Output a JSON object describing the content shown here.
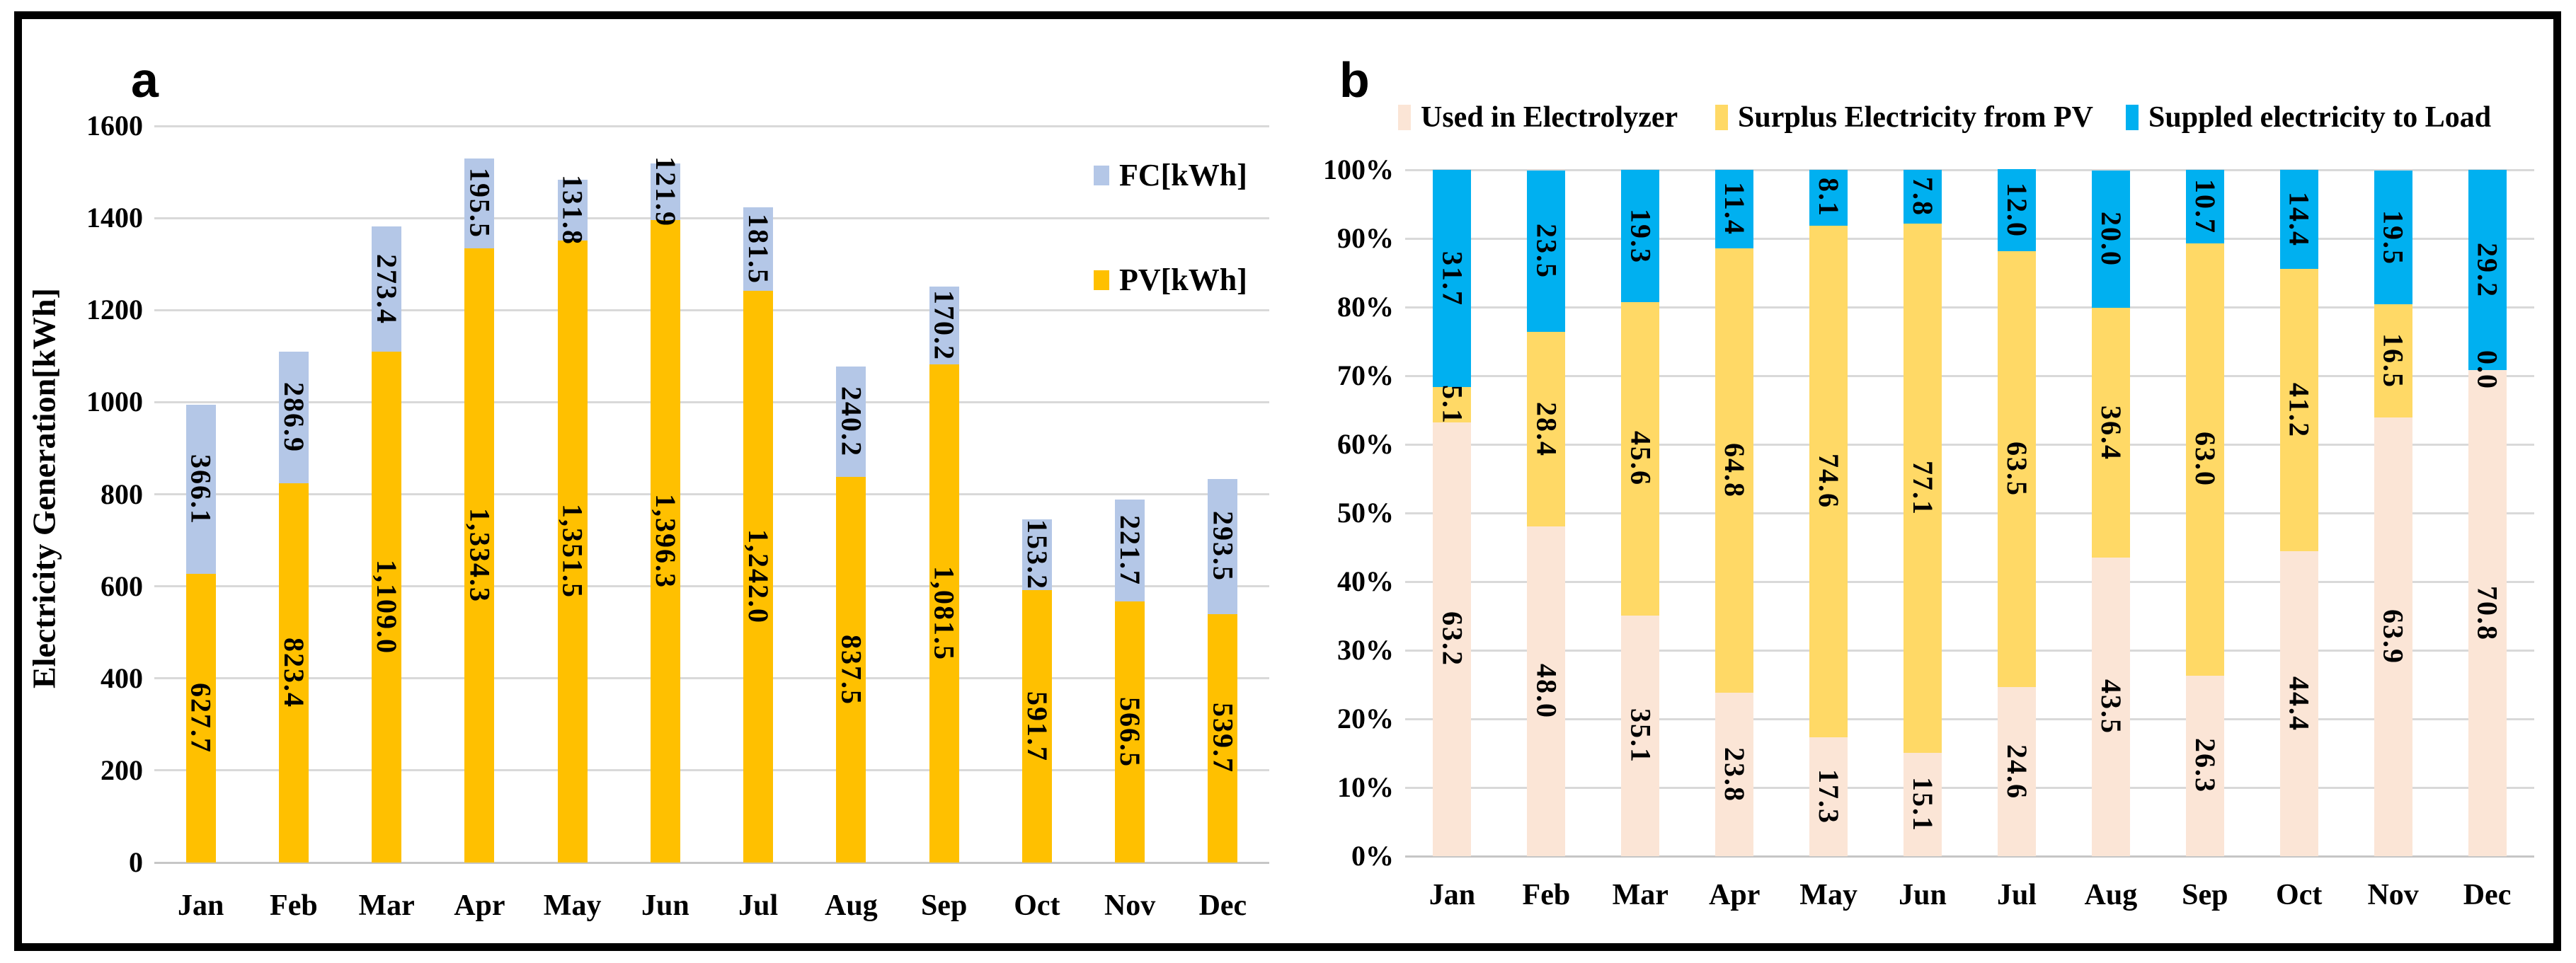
{
  "figure": {
    "panel_a_label": "a",
    "panel_b_label": "b"
  },
  "chart_data": [
    {
      "id": "a",
      "type": "bar",
      "stacked": true,
      "title": "",
      "xlabel": "",
      "ylabel": "Electricity Generation[kWh]",
      "ylim": [
        0,
        1600
      ],
      "ytick_labels": [
        "0",
        "200",
        "400",
        "600",
        "800",
        "1000",
        "1200",
        "1400",
        "1600"
      ],
      "grid": true,
      "legend_position": "right",
      "categories": [
        "Jan",
        "Feb",
        "Mar",
        "Apr",
        "May",
        "Jun",
        "Jul",
        "Aug",
        "Sep",
        "Oct",
        "Nov",
        "Dec"
      ],
      "series": [
        {
          "name": "PV[kWh]",
          "color": "#FFC000",
          "values": [
            627.7,
            823.4,
            1109.0,
            1334.3,
            1351.5,
            1396.3,
            1242.0,
            837.5,
            1081.5,
            591.7,
            566.5,
            539.7
          ],
          "value_labels": [
            "627.7",
            "823.4",
            "1,109.0",
            "1,334.3",
            "1,351.5",
            "1,396.3",
            "1,242.0",
            "837.5",
            "1,081.5",
            "591.7",
            "566.5",
            "539.7"
          ]
        },
        {
          "name": "FC[kWh]",
          "color": "#B4C7E7",
          "values": [
            366.1,
            286.9,
            273.4,
            195.5,
            131.8,
            121.9,
            181.5,
            240.2,
            170.2,
            153.2,
            221.7,
            293.5
          ],
          "value_labels": [
            "366.1",
            "286.9",
            "273.4",
            "195.5",
            "131.8",
            "121.9",
            "181.5",
            "240.2",
            "170.2",
            "153.2",
            "221.7",
            "293.5"
          ]
        }
      ],
      "legend_entries": [
        {
          "label": "FC[kWh]",
          "color": "#B4C7E7"
        },
        {
          "label": "PV[kWh]",
          "color": "#FFC000"
        }
      ]
    },
    {
      "id": "b",
      "type": "bar",
      "stacked": true,
      "percent": true,
      "title": "",
      "xlabel": "",
      "ylabel": "",
      "ylim": [
        0,
        100
      ],
      "ytick_labels": [
        "0%",
        "10%",
        "20%",
        "30%",
        "40%",
        "50%",
        "60%",
        "70%",
        "80%",
        "90%",
        "100%"
      ],
      "grid": true,
      "legend_position": "top",
      "categories": [
        "Jan",
        "Feb",
        "Mar",
        "Apr",
        "May",
        "Jun",
        "Jul",
        "Aug",
        "Sep",
        "Oct",
        "Nov",
        "Dec"
      ],
      "series": [
        {
          "name": "Used in Electrolyzer",
          "color": "#FBE5D6",
          "values": [
            63.2,
            48.0,
            35.1,
            23.8,
            17.3,
            15.1,
            24.6,
            43.5,
            26.3,
            44.4,
            63.9,
            70.8
          ],
          "value_labels": [
            "63.2",
            "48.0",
            "35.1",
            "23.8",
            "17.3",
            "15.1",
            "24.6",
            "43.5",
            "26.3",
            "44.4",
            "63.9",
            "70.8"
          ]
        },
        {
          "name": "Surplus Electricity from PV",
          "color": "#FFD966",
          "values": [
            5.1,
            28.4,
            45.6,
            64.8,
            74.6,
            77.1,
            63.5,
            36.4,
            63.0,
            41.2,
            16.5,
            0.0
          ],
          "value_labels": [
            "5.1",
            "28.4",
            "45.6",
            "64.8",
            "74.6",
            "77.1",
            "63.5",
            "36.4",
            "63.0",
            "41.2",
            "16.5",
            "0.0"
          ]
        },
        {
          "name": "Suppled electricity to Load",
          "color": "#00B0F0",
          "values": [
            31.7,
            23.5,
            19.3,
            11.4,
            8.1,
            7.8,
            12.0,
            20.0,
            10.7,
            14.4,
            19.5,
            29.2
          ],
          "value_labels": [
            "31.7",
            "23.5",
            "19.3",
            "11.4",
            "8.1",
            "7.8",
            "12.0",
            "20.0",
            "10.7",
            "14.4",
            "19.5",
            "29.2"
          ]
        }
      ],
      "legend_entries": [
        {
          "label": "Used in Electrolyzer",
          "color": "#FBE5D6"
        },
        {
          "label": "Surplus Electricity from PV",
          "color": "#FFD966"
        },
        {
          "label": "Suppled electricity to Load",
          "color": "#00B0F0"
        }
      ]
    }
  ]
}
